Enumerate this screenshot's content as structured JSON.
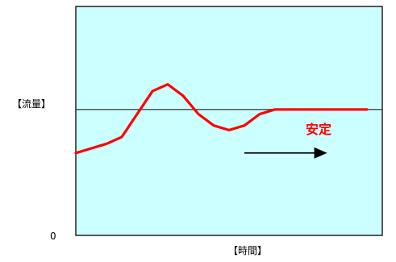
{
  "chart_data": {
    "type": "line",
    "title": "",
    "ylabel": "【流量】",
    "xlabel": "【時間】",
    "y_origin_label": "0",
    "annotation": "安定",
    "xlim": [
      0,
      10
    ],
    "ylim": [
      0,
      10
    ],
    "reference_line": {
      "y": 5.5,
      "color": "#444444"
    },
    "series": [
      {
        "color": "#ff0000",
        "x": [
          0,
          0.5,
          1.0,
          1.5,
          2.0,
          2.5,
          3.0,
          3.5,
          4.0,
          4.5,
          5.0,
          5.5,
          6.0,
          6.5,
          7.0,
          7.5,
          8.0,
          8.5,
          9.0,
          9.5
        ],
        "y": [
          3.6,
          3.8,
          4.0,
          4.3,
          5.3,
          6.3,
          6.6,
          6.1,
          5.3,
          4.8,
          4.6,
          4.8,
          5.3,
          5.5,
          5.5,
          5.5,
          5.5,
          5.5,
          5.5,
          5.5
        ]
      }
    ],
    "arrow": {
      "from_x": 5.5,
      "to_x": 8.2,
      "y": 3.6,
      "color": "#000000"
    },
    "background": "#ccffff",
    "border": "#000000",
    "grid": false
  }
}
